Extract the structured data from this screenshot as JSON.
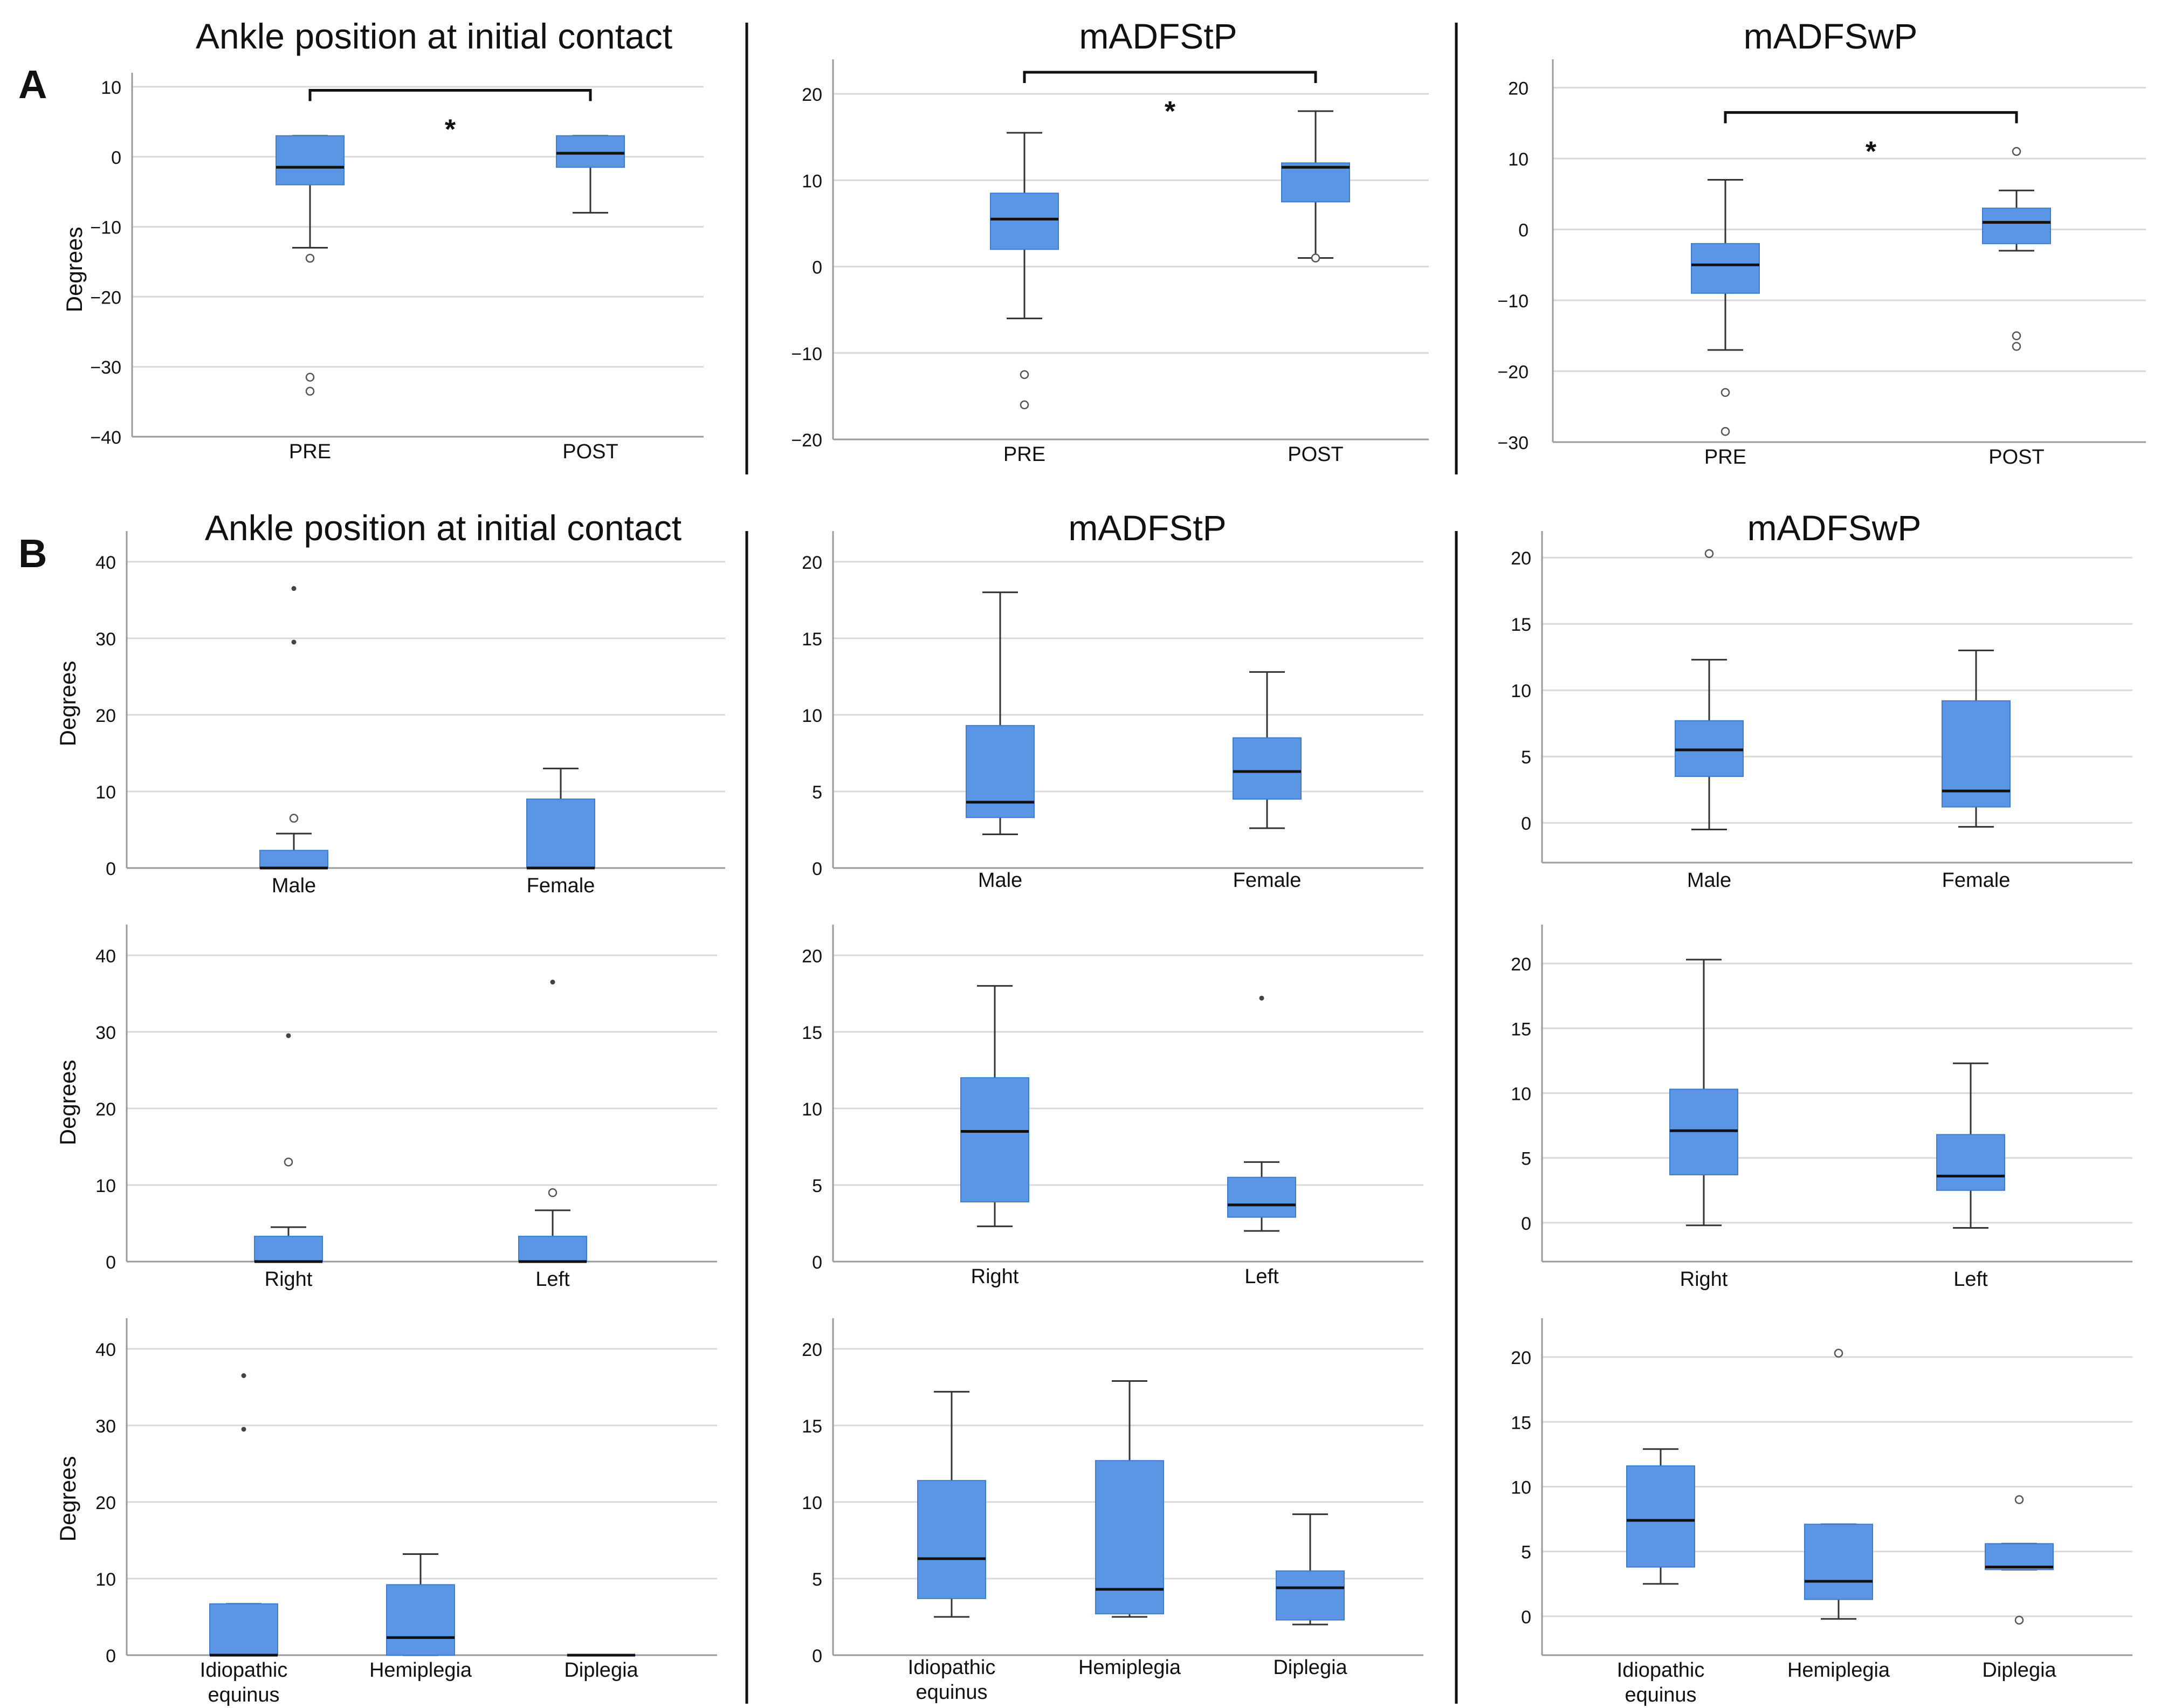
{
  "panel_labels": [
    "A",
    "B"
  ],
  "colors": {
    "box": "#5a96e3",
    "grid": "#d9d9d9",
    "axis": "#9a9a9a",
    "ink": "#111111"
  },
  "chart_data": [
    {
      "id": "A1",
      "type": "boxplot",
      "title": "Ankle position at initial contact",
      "ylabel": "Degrees",
      "ylim": [
        -40,
        12
      ],
      "yticks": [
        -40,
        -30,
        -20,
        -10,
        0,
        10
      ],
      "tick_labels": [
        "−40",
        "−30",
        "−20",
        "−10",
        "0",
        "10"
      ],
      "categories": [
        "PRE",
        "POST"
      ],
      "boxes": [
        {
          "q1": -4,
          "median": -1.5,
          "q3": 3,
          "whisker_low": -13,
          "whisker_high": 3,
          "outliers": [
            -14.5,
            -31.5,
            -33.5
          ],
          "extremes": []
        },
        {
          "q1": -1.5,
          "median": 0.5,
          "q3": 3,
          "whisker_low": -8,
          "whisker_high": 3,
          "outliers": [],
          "extremes": []
        }
      ],
      "significance": {
        "from": 0,
        "to": 1,
        "y": 9.5,
        "label": "*"
      }
    },
    {
      "id": "A2",
      "type": "boxplot",
      "title": "mADFStP",
      "ylabel": "",
      "ylim": [
        -20,
        24
      ],
      "yticks": [
        -20,
        -10,
        0,
        10,
        20
      ],
      "tick_labels": [
        "−20",
        "−10",
        "0",
        "10",
        "20"
      ],
      "categories": [
        "PRE",
        "POST"
      ],
      "boxes": [
        {
          "q1": 2,
          "median": 5.5,
          "q3": 8.5,
          "whisker_low": -6,
          "whisker_high": 15.5,
          "outliers": [
            -12.5,
            -16
          ],
          "extremes": []
        },
        {
          "q1": 7.5,
          "median": 11.5,
          "q3": 12,
          "whisker_low": 1,
          "whisker_high": 18,
          "outliers": [
            1
          ],
          "extremes": []
        }
      ],
      "significance": {
        "from": 0,
        "to": 1,
        "y": 22.5,
        "label": "*"
      }
    },
    {
      "id": "A3",
      "type": "boxplot",
      "title": "mADFSwP",
      "ylabel": "",
      "ylim": [
        -30,
        24
      ],
      "yticks": [
        -30,
        -20,
        -10,
        0,
        10,
        20
      ],
      "tick_labels": [
        "−30",
        "−20",
        "−10",
        "0",
        "10",
        "20"
      ],
      "categories": [
        "PRE",
        "POST"
      ],
      "boxes": [
        {
          "q1": -9,
          "median": -5,
          "q3": -2,
          "whisker_low": -17,
          "whisker_high": 7,
          "outliers": [
            -23,
            -28.5
          ],
          "extremes": []
        },
        {
          "q1": -2,
          "median": 1,
          "q3": 3,
          "whisker_low": -3,
          "whisker_high": 5.5,
          "outliers": [
            11,
            -15,
            -16.5
          ],
          "extremes": []
        }
      ],
      "significance": {
        "from": 0,
        "to": 1,
        "y": 16.5,
        "label": "*"
      }
    },
    {
      "id": "B1",
      "type": "boxplot",
      "title": "Ankle position at initial contact",
      "ylabel": "Degrees",
      "ylim": [
        0,
        44
      ],
      "yticks": [
        0,
        10,
        20,
        30,
        40
      ],
      "tick_labels": [
        "0",
        "10",
        "20",
        "30",
        "40"
      ],
      "categories": [
        "Male",
        "Female"
      ],
      "boxes": [
        {
          "q1": 0,
          "median": 0,
          "q3": 2.3,
          "whisker_low": 0,
          "whisker_high": 4.5,
          "outliers": [
            6.5
          ],
          "extremes": [
            29.5,
            36.5
          ]
        },
        {
          "q1": 0,
          "median": 0,
          "q3": 9,
          "whisker_low": 0,
          "whisker_high": 13,
          "outliers": [],
          "extremes": []
        }
      ]
    },
    {
      "id": "B2",
      "type": "boxplot",
      "title": "mADFStP",
      "ylabel": "",
      "ylim": [
        0,
        22
      ],
      "yticks": [
        0,
        5,
        10,
        15,
        20
      ],
      "tick_labels": [
        "0",
        "5",
        "10",
        "15",
        "20"
      ],
      "categories": [
        "Male",
        "Female"
      ],
      "boxes": [
        {
          "q1": 3.3,
          "median": 4.3,
          "q3": 9.3,
          "whisker_low": 2.2,
          "whisker_high": 18,
          "outliers": [],
          "extremes": []
        },
        {
          "q1": 4.5,
          "median": 6.3,
          "q3": 8.5,
          "whisker_low": 2.6,
          "whisker_high": 12.8,
          "outliers": [],
          "extremes": []
        }
      ]
    },
    {
      "id": "B3",
      "type": "boxplot",
      "title": "mADFSwP",
      "ylabel": "",
      "ylim": [
        -3,
        22
      ],
      "yticks": [
        0,
        5,
        10,
        15,
        20
      ],
      "tick_labels": [
        "0",
        "5",
        "10",
        "15",
        "20"
      ],
      "categories": [
        "Male",
        "Female"
      ],
      "boxes": [
        {
          "q1": 3.5,
          "median": 5.5,
          "q3": 7.7,
          "whisker_low": -0.5,
          "whisker_high": 12.3,
          "outliers": [
            20.3
          ],
          "extremes": []
        },
        {
          "q1": 1.2,
          "median": 2.4,
          "q3": 9.2,
          "whisker_low": -0.3,
          "whisker_high": 13,
          "outliers": [],
          "extremes": []
        }
      ]
    },
    {
      "id": "C1",
      "type": "boxplot",
      "title": "",
      "ylabel": "Degrees",
      "ylim": [
        0,
        44
      ],
      "yticks": [
        0,
        10,
        20,
        30,
        40
      ],
      "tick_labels": [
        "0",
        "10",
        "20",
        "30",
        "40"
      ],
      "categories": [
        "Right",
        "Left"
      ],
      "boxes": [
        {
          "q1": 0,
          "median": 0,
          "q3": 3.3,
          "whisker_low": 0,
          "whisker_high": 4.5,
          "outliers": [
            13
          ],
          "extremes": [
            29.5
          ]
        },
        {
          "q1": 0,
          "median": 0,
          "q3": 3.3,
          "whisker_low": 0,
          "whisker_high": 6.7,
          "outliers": [
            9
          ],
          "extremes": [
            36.5
          ]
        }
      ]
    },
    {
      "id": "C2",
      "type": "boxplot",
      "title": "",
      "ylabel": "",
      "ylim": [
        0,
        22
      ],
      "yticks": [
        0,
        5,
        10,
        15,
        20
      ],
      "tick_labels": [
        "0",
        "5",
        "10",
        "15",
        "20"
      ],
      "categories": [
        "Right",
        "Left"
      ],
      "boxes": [
        {
          "q1": 3.9,
          "median": 8.5,
          "q3": 12,
          "whisker_low": 2.3,
          "whisker_high": 18,
          "outliers": [],
          "extremes": []
        },
        {
          "q1": 2.9,
          "median": 3.7,
          "q3": 5.5,
          "whisker_low": 2,
          "whisker_high": 6.5,
          "outliers": [],
          "extremes": [
            17.2
          ]
        }
      ]
    },
    {
      "id": "C3",
      "type": "boxplot",
      "title": "",
      "ylabel": "",
      "ylim": [
        -3,
        23
      ],
      "yticks": [
        0,
        5,
        10,
        15,
        20
      ],
      "tick_labels": [
        "0",
        "5",
        "10",
        "15",
        "20"
      ],
      "categories": [
        "Right",
        "Left"
      ],
      "boxes": [
        {
          "q1": 3.7,
          "median": 7.1,
          "q3": 10.3,
          "whisker_low": -0.2,
          "whisker_high": 20.3,
          "outliers": [],
          "extremes": []
        },
        {
          "q1": 2.5,
          "median": 3.6,
          "q3": 6.8,
          "whisker_low": -0.4,
          "whisker_high": 12.3,
          "outliers": [],
          "extremes": []
        }
      ]
    },
    {
      "id": "D1",
      "type": "boxplot",
      "title": "",
      "ylabel": "Degrees",
      "ylim": [
        0,
        44
      ],
      "yticks": [
        0,
        10,
        20,
        30,
        40
      ],
      "tick_labels": [
        "0",
        "10",
        "20",
        "30",
        "40"
      ],
      "categories": [
        "Idiopathic equinus",
        "Hemiplegia",
        "Diplegia"
      ],
      "boxes": [
        {
          "q1": 0,
          "median": 0,
          "q3": 6.7,
          "whisker_low": 0,
          "whisker_high": 6.7,
          "outliers": [],
          "extremes": [
            29.5,
            36.5
          ]
        },
        {
          "q1": 0,
          "median": 2.3,
          "q3": 9.2,
          "whisker_low": 0,
          "whisker_high": 13.2,
          "outliers": [],
          "extremes": []
        },
        {
          "q1": 0,
          "median": 0,
          "q3": 0,
          "whisker_low": 0,
          "whisker_high": 0,
          "outliers": [],
          "extremes": []
        }
      ]
    },
    {
      "id": "D2",
      "type": "boxplot",
      "title": "",
      "ylabel": "",
      "ylim": [
        0,
        22
      ],
      "yticks": [
        0,
        5,
        10,
        15,
        20
      ],
      "tick_labels": [
        "0",
        "5",
        "10",
        "15",
        "20"
      ],
      "categories": [
        "Idiopathic equinus",
        "Hemiplegia",
        "Diplegia"
      ],
      "boxes": [
        {
          "q1": 3.7,
          "median": 6.3,
          "q3": 11.4,
          "whisker_low": 2.5,
          "whisker_high": 17.2,
          "outliers": [],
          "extremes": []
        },
        {
          "q1": 2.7,
          "median": 4.3,
          "q3": 12.7,
          "whisker_low": 2.5,
          "whisker_high": 17.9,
          "outliers": [],
          "extremes": []
        },
        {
          "q1": 2.3,
          "median": 4.4,
          "q3": 5.5,
          "whisker_low": 2,
          "whisker_high": 9.2,
          "outliers": [],
          "extremes": []
        }
      ]
    },
    {
      "id": "D3",
      "type": "boxplot",
      "title": "",
      "ylabel": "",
      "ylim": [
        -3,
        23
      ],
      "yticks": [
        0,
        5,
        10,
        15,
        20
      ],
      "tick_labels": [
        "0",
        "5",
        "10",
        "15",
        "20"
      ],
      "categories": [
        "Idiopathic equinus",
        "Hemiplegia",
        "Diplegia"
      ],
      "boxes": [
        {
          "q1": 3.8,
          "median": 7.4,
          "q3": 11.6,
          "whisker_low": 2.5,
          "whisker_high": 12.9,
          "outliers": [],
          "extremes": []
        },
        {
          "q1": 1.3,
          "median": 2.7,
          "q3": 7.1,
          "whisker_low": -0.2,
          "whisker_high": 7.1,
          "outliers": [
            20.3
          ],
          "extremes": []
        },
        {
          "q1": 3.6,
          "median": 3.8,
          "q3": 5.6,
          "whisker_low": 3.6,
          "whisker_high": 5.6,
          "outliers": [
            9,
            -0.3
          ],
          "extremes": []
        }
      ]
    }
  ]
}
